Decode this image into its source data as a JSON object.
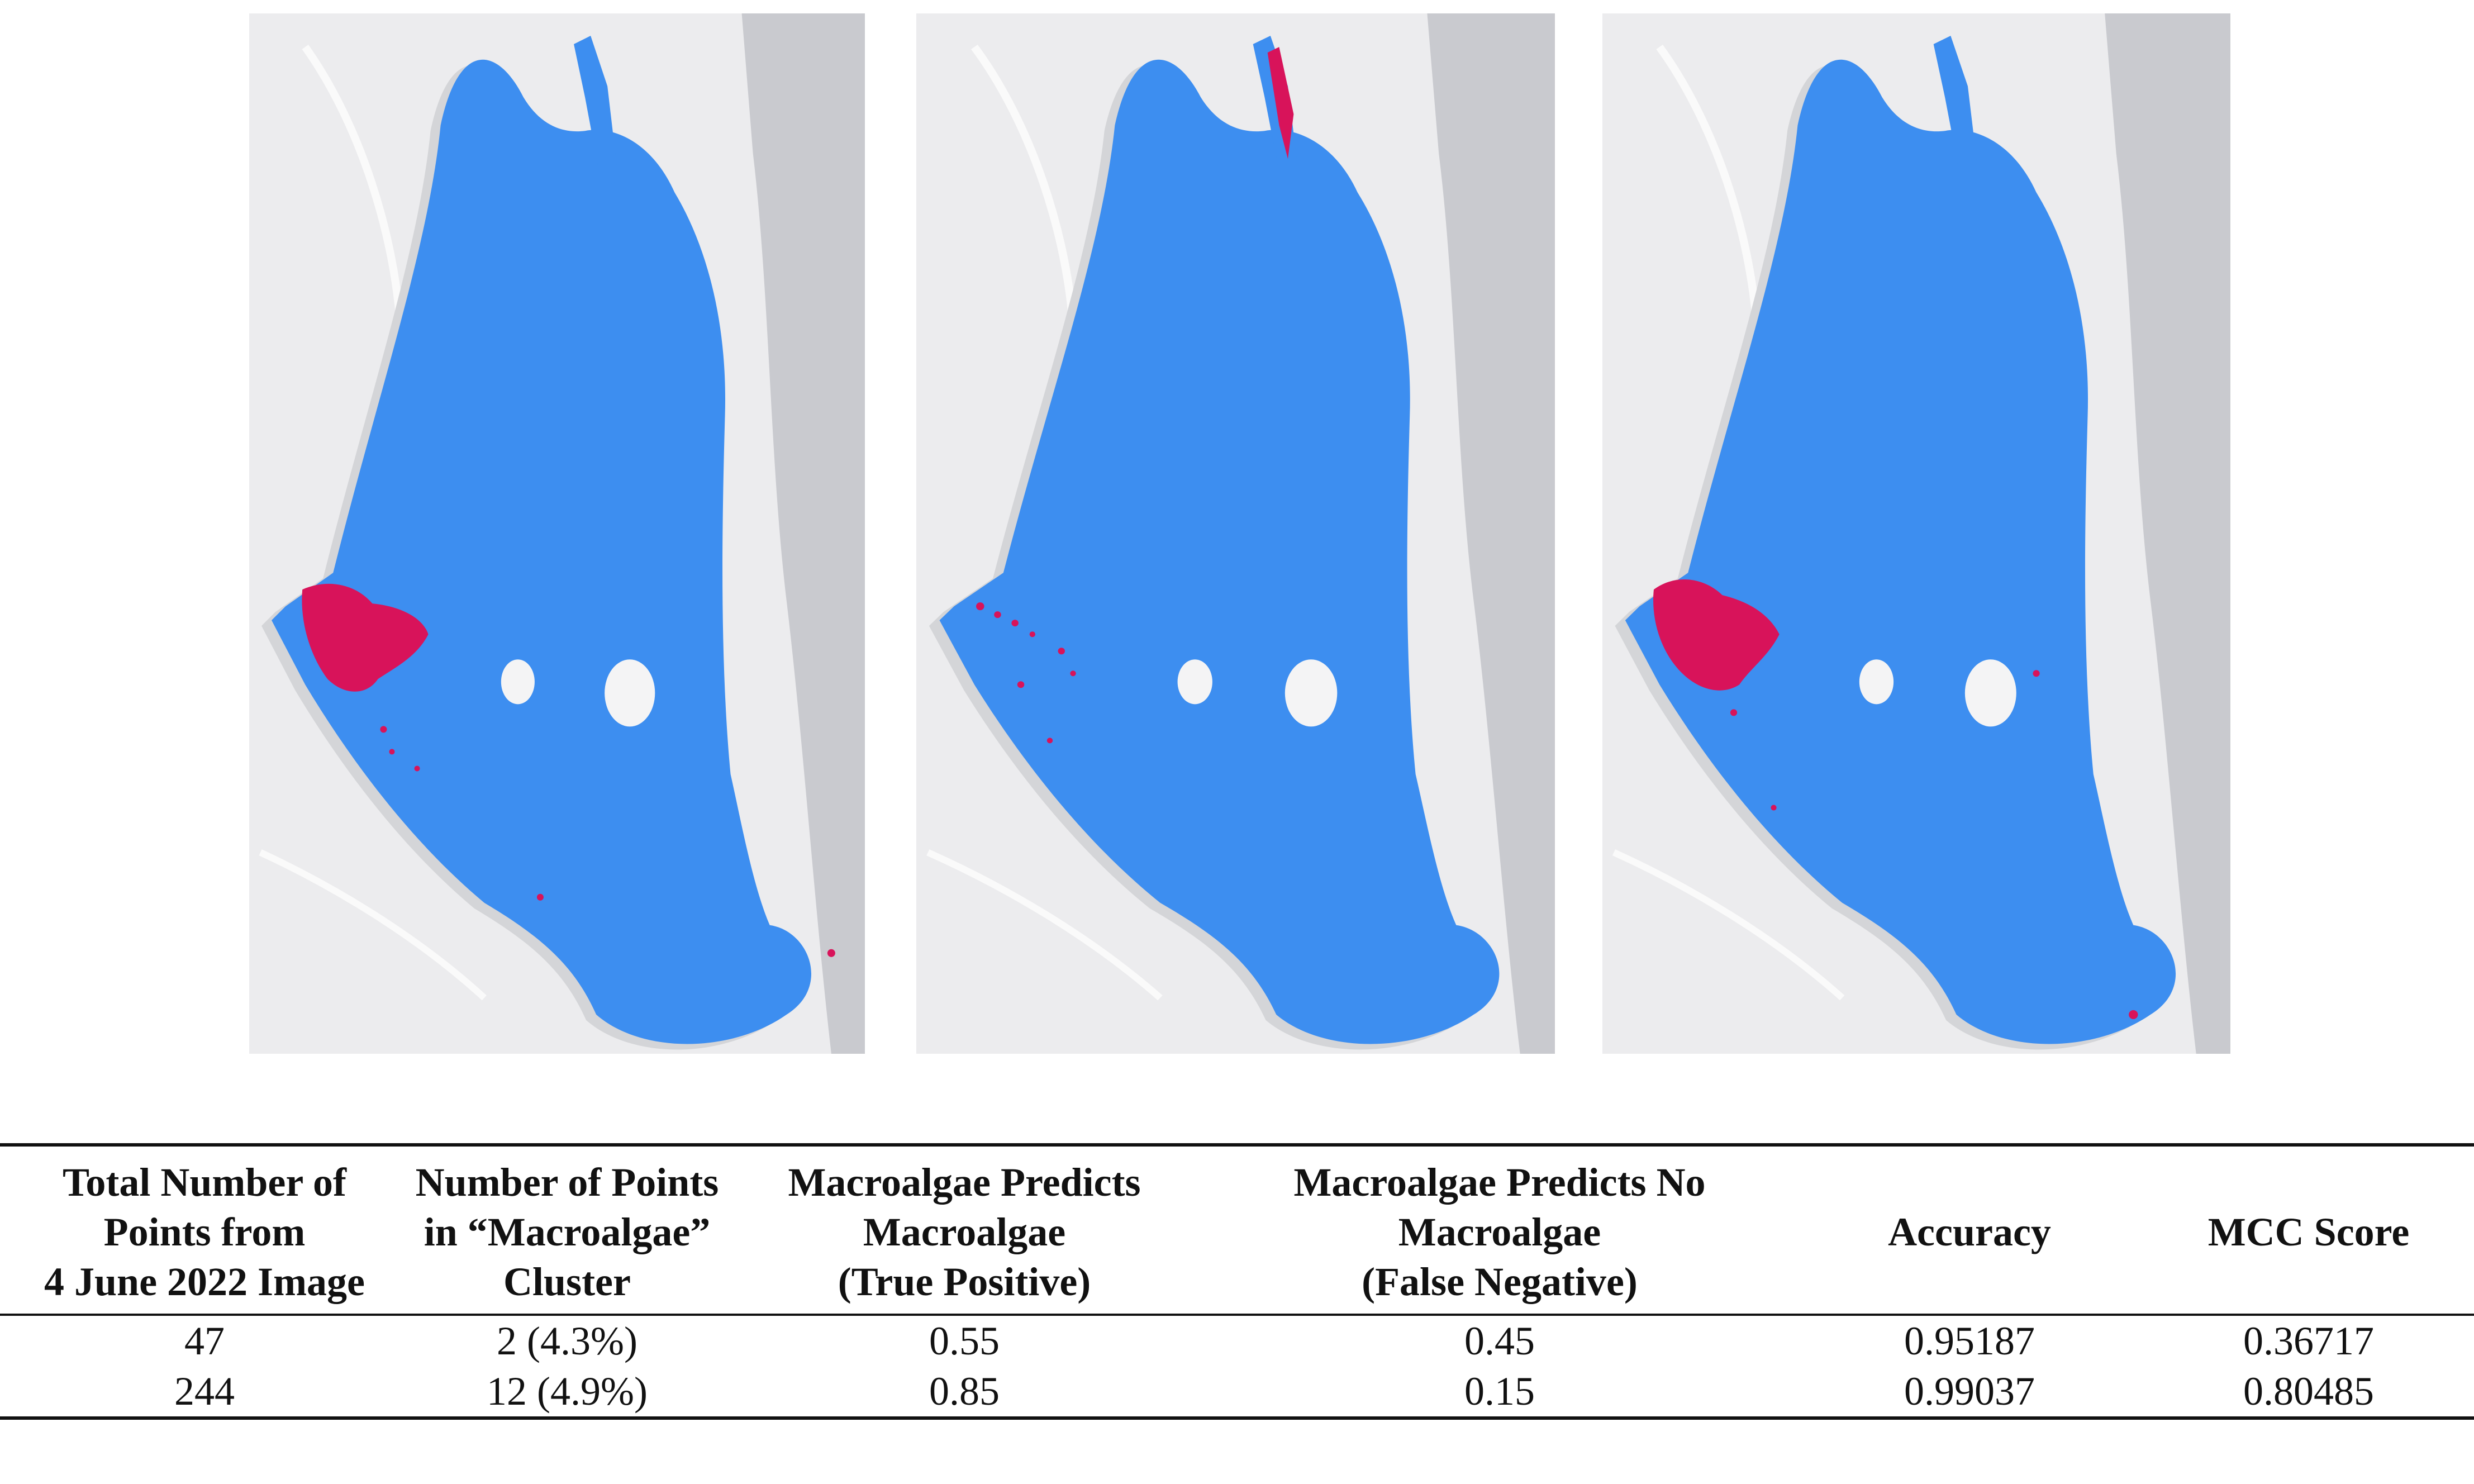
{
  "figure": {
    "panels": [
      {
        "id": "panel-1",
        "water_color": "#3d8ef0",
        "macroalgae_color": "#d8135a",
        "land_color": "#ececee",
        "shore_color": "#cfd0d3"
      },
      {
        "id": "panel-2",
        "water_color": "#3d8ef0",
        "macroalgae_color": "#d8135a",
        "land_color": "#ececee",
        "shore_color": "#cfd0d3"
      },
      {
        "id": "panel-3",
        "water_color": "#3d8ef0",
        "macroalgae_color": "#d8135a",
        "land_color": "#ececee",
        "shore_color": "#cfd0d3"
      }
    ]
  },
  "table": {
    "headers": [
      [
        "Total Number of",
        "Points from",
        "4 June 2022 Image"
      ],
      [
        "Number of Points",
        "in “Macroalgae”",
        "Cluster"
      ],
      [
        "Macroalgae Predicts",
        "Macroalgae",
        "(True Positive)"
      ],
      [
        "Macroalgae Predicts No",
        "Macroalgae",
        "(False Negative)"
      ],
      [
        "Accuracy"
      ],
      [
        "MCC Score"
      ]
    ],
    "rows": [
      [
        "47",
        "2 (4.3%)",
        "0.55",
        "0.45",
        "0.95187",
        "0.36717"
      ],
      [
        "244",
        "12 (4.9%)",
        "0.85",
        "0.15",
        "0.99037",
        "0.80485"
      ]
    ]
  }
}
